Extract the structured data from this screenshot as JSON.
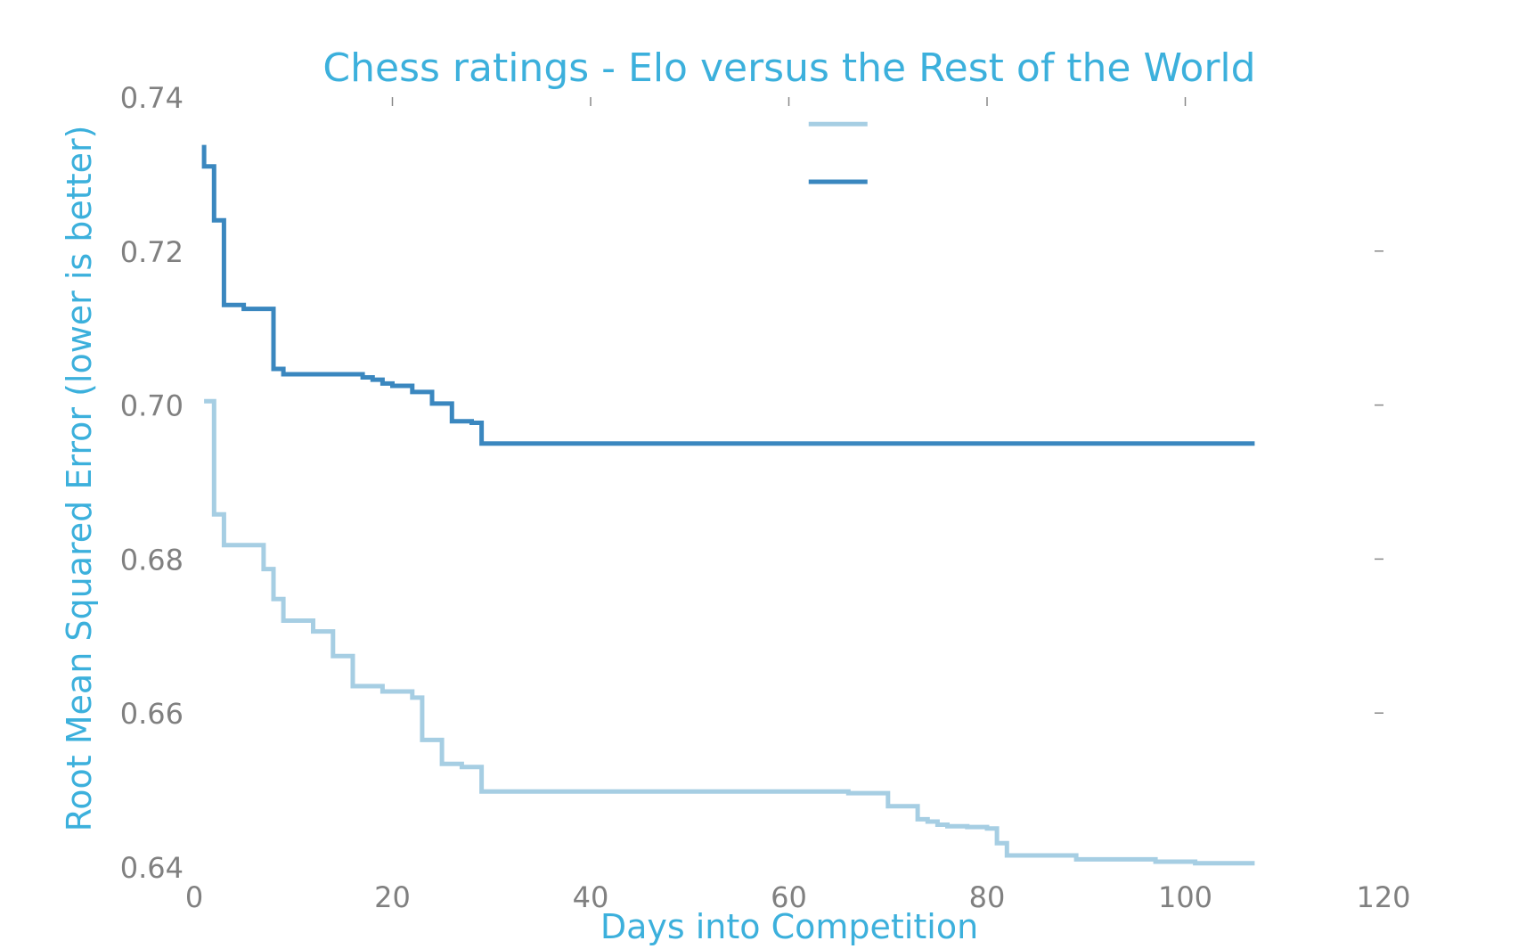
{
  "chart_data": {
    "type": "line",
    "step": true,
    "title": "Chess ratings - Elo versus the Rest of the World",
    "xlabel": "Days into Competition",
    "ylabel": "Root Mean Squared Error (lower is better)",
    "xlim": [
      0,
      120
    ],
    "ylim": [
      0.64,
      0.74
    ],
    "xticks": [
      "0",
      "20",
      "40",
      "60",
      "80",
      "100",
      "120"
    ],
    "yticks": [
      "0.64",
      "0.66",
      "0.68",
      "0.70",
      "0.72",
      "0.74"
    ],
    "grid": false,
    "legend": "top-center",
    "series": [
      {
        "color": "#a6cee3",
        "points": [
          [
            1,
            0.7005
          ],
          [
            2,
            0.6858
          ],
          [
            3,
            0.6818
          ],
          [
            7,
            0.6787
          ],
          [
            8,
            0.6748
          ],
          [
            9,
            0.672
          ],
          [
            12,
            0.6706
          ],
          [
            14,
            0.6674
          ],
          [
            16,
            0.6635
          ],
          [
            19,
            0.6628
          ],
          [
            22,
            0.662
          ],
          [
            23,
            0.6565
          ],
          [
            25,
            0.6534
          ],
          [
            27,
            0.653
          ],
          [
            29,
            0.6498
          ],
          [
            66,
            0.6496
          ],
          [
            70,
            0.6479
          ],
          [
            73,
            0.6462
          ],
          [
            74,
            0.6459
          ],
          [
            75,
            0.6455
          ],
          [
            76,
            0.6453
          ],
          [
            78,
            0.6452
          ],
          [
            80,
            0.645
          ],
          [
            81,
            0.6431
          ],
          [
            82,
            0.6415
          ],
          [
            89,
            0.641
          ],
          [
            97,
            0.6407
          ],
          [
            101,
            0.6405
          ],
          [
            107,
            0.6405
          ]
        ]
      },
      {
        "color": "#3a87bf",
        "points": [
          [
            1,
            0.7338
          ],
          [
            1,
            0.731
          ],
          [
            2,
            0.724
          ],
          [
            3,
            0.713
          ],
          [
            5,
            0.7125
          ],
          [
            8,
            0.7047
          ],
          [
            9,
            0.704
          ],
          [
            17,
            0.7036
          ],
          [
            18,
            0.7033
          ],
          [
            19,
            0.7028
          ],
          [
            20,
            0.7025
          ],
          [
            22,
            0.7017
          ],
          [
            24,
            0.7002
          ],
          [
            26,
            0.6979
          ],
          [
            28,
            0.6977
          ],
          [
            29,
            0.695
          ],
          [
            107,
            0.695
          ]
        ]
      }
    ]
  },
  "colors": {
    "title": "#3cb0dc",
    "axis_label": "#3cb0dc",
    "tick_label": "#808080",
    "tick_mark": "#888888"
  }
}
